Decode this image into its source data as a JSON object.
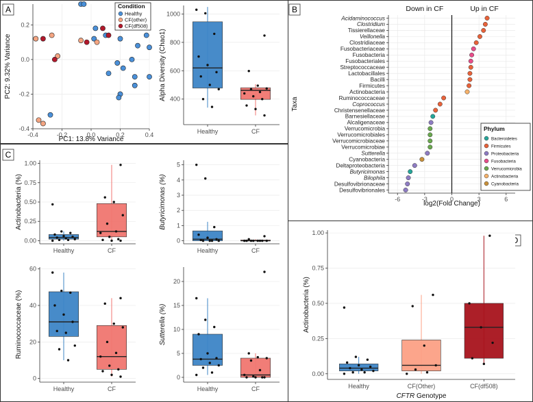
{
  "colors": {
    "healthy": "#3d85c6",
    "cf": "#f07670",
    "pca_healthy": "#4a90d9",
    "pca_cf_other": "#f4a582",
    "pca_cf_df508": "#b2182b",
    "cf_other_box": "#fca085",
    "cf_df508_box": "#a8131c"
  },
  "chart_data": [
    {
      "panel": "A",
      "type": "scatter",
      "xlabel": "PC1: 13.8% Variance",
      "ylabel": "PC2: 9.32% Variance",
      "xlim": [
        -0.4,
        0.4
      ],
      "ylim": [
        -0.4,
        0.32
      ],
      "xticks": [
        -0.4,
        -0.2,
        0.0,
        0.2,
        0.4
      ],
      "xtick_labels": [
        "-0.4",
        "-0.2",
        "0.0",
        "0.2",
        "0.4"
      ],
      "yticks": [
        -0.4,
        -0.2,
        0.0,
        0.2
      ],
      "ytick_labels": [
        "-0.4",
        "-0.2",
        "0.0",
        "0.2"
      ],
      "legend": {
        "title": "Condition",
        "entries": [
          "Healthy",
          "CF(other)",
          "CF(df508)"
        ]
      },
      "series": [
        {
          "name": "Healthy",
          "points": [
            [
              -0.07,
              0.32
            ],
            [
              -0.05,
              0.32
            ],
            [
              0.03,
              0.18
            ],
            [
              0.02,
              0.12
            ],
            [
              0.1,
              0.14
            ],
            [
              0.2,
              0.12
            ],
            [
              0.38,
              0.14
            ],
            [
              0.4,
              0.07
            ],
            [
              0.32,
              0.08
            ],
            [
              0.28,
              0.0
            ],
            [
              0.18,
              -0.02
            ],
            [
              0.22,
              -0.05
            ],
            [
              0.4,
              -0.1
            ],
            [
              0.3,
              -0.1
            ],
            [
              0.12,
              -0.08
            ],
            [
              0.3,
              -0.15
            ],
            [
              0.2,
              -0.2
            ],
            [
              0.19,
              -0.22
            ],
            [
              -0.28,
              -0.32
            ]
          ]
        },
        {
          "name": "CF(other)",
          "points": [
            [
              -0.38,
              0.12
            ],
            [
              -0.27,
              0.14
            ],
            [
              -0.07,
              0.11
            ],
            [
              0.04,
              0.1
            ],
            [
              -0.23,
              0.02
            ],
            [
              -0.36,
              -0.35
            ],
            [
              -0.33,
              -0.37
            ]
          ]
        },
        {
          "name": "CF(df508)",
          "points": [
            [
              -0.33,
              0.12
            ],
            [
              0.08,
              0.18
            ],
            [
              0.12,
              0.14
            ],
            [
              -0.03,
              0.1
            ],
            [
              -0.25,
              0.0
            ]
          ]
        }
      ]
    },
    {
      "panel": "A-box",
      "type": "box",
      "ylabel": "Alpha Diversity (Chao1)",
      "categories": [
        "Healthy",
        "CF"
      ],
      "ylim": [
        220,
        1060
      ],
      "yticks": [
        400,
        600,
        800,
        1000
      ],
      "ytick_labels": [
        "400",
        "600",
        "800",
        "1000"
      ],
      "boxes": [
        {
          "q1": 478,
          "median": 620,
          "q3": 945,
          "lo": 340,
          "hi": 1050,
          "outliers": []
        },
        {
          "q1": 398,
          "median": 462,
          "q3": 480,
          "lo": 285,
          "hi": 505,
          "outliers": [
            848,
            598
          ]
        }
      ],
      "points": [
        [
          1030,
          1005,
          860,
          700,
          640,
          590,
          560,
          500,
          470,
          400,
          345
        ],
        [
          848,
          598,
          495,
          475,
          470,
          450,
          440,
          420,
          400,
          355,
          330,
          285
        ]
      ]
    },
    {
      "panel": "B",
      "type": "dot",
      "header_left": "Down in CF",
      "header_right": "Up in CF",
      "xlabel": "log2(Fold Change)",
      "ylabel": "Taxa",
      "xlim": [
        -7,
        7
      ],
      "xticks": [
        -6,
        -3,
        0,
        3,
        6
      ],
      "xtick_labels": [
        "-6",
        "-3",
        "0",
        "3",
        "6"
      ],
      "legend": {
        "title": "Phylum",
        "entries": [
          "Bacteroidetes",
          "Firmicutes",
          "Proteobacteria",
          "Fusobacteria",
          "Verrucomicrobia",
          "Actinobacteria",
          "Cyanobacteria"
        ]
      },
      "phylum_colors": {
        "Bacteroidetes": "#26a69a",
        "Firmicutes": "#e8623a",
        "Proteobacteria": "#8e7cc3",
        "Fusobacteria": "#e84d8a",
        "Verrucomicrobia": "#6aa84f",
        "Actinobacteria": "#f6b26b",
        "Cyanobacteria": "#c9913b"
      },
      "taxa": [
        {
          "name": "Acidaminococcus",
          "italic": true,
          "value": 3.9,
          "phylum": "Firmicutes"
        },
        {
          "name": "Clostridium",
          "italic": true,
          "value": 3.7,
          "phylum": "Firmicutes"
        },
        {
          "name": "Tissierellaceae",
          "italic": false,
          "value": 3.5,
          "phylum": "Firmicutes"
        },
        {
          "name": "Veillonella",
          "italic": true,
          "value": 3.1,
          "phylum": "Firmicutes"
        },
        {
          "name": "Clostridiaceae",
          "italic": false,
          "value": 2.7,
          "phylum": "Firmicutes"
        },
        {
          "name": "Fusobacteriaceae",
          "italic": false,
          "value": 2.4,
          "phylum": "Fusobacteria"
        },
        {
          "name": "Fusobacteria",
          "italic": false,
          "value": 2.2,
          "phylum": "Fusobacteria"
        },
        {
          "name": "Fusobacteriales",
          "italic": false,
          "value": 2.1,
          "phylum": "Fusobacteria"
        },
        {
          "name": "Streptococcaceae",
          "italic": false,
          "value": 2.1,
          "phylum": "Firmicutes"
        },
        {
          "name": "Lactobacillales",
          "italic": false,
          "value": 2.0,
          "phylum": "Firmicutes"
        },
        {
          "name": "Bacilli",
          "italic": false,
          "value": 2.0,
          "phylum": "Firmicutes"
        },
        {
          "name": "Firmicutes",
          "italic": false,
          "value": 1.9,
          "phylum": "Firmicutes"
        },
        {
          "name": "Actinobacteria",
          "italic": false,
          "value": 1.7,
          "phylum": "Actinobacteria"
        },
        {
          "name": "Ruminococcaceae",
          "italic": false,
          "value": -0.9,
          "phylum": "Firmicutes"
        },
        {
          "name": "Coprococcus",
          "italic": true,
          "value": -1.3,
          "phylum": "Firmicutes"
        },
        {
          "name": "Christensenellaceae",
          "italic": false,
          "value": -1.8,
          "phylum": "Firmicutes"
        },
        {
          "name": "Barnesiellaceae",
          "italic": false,
          "value": -2.1,
          "phylum": "Bacteroidetes"
        },
        {
          "name": "Alcaligenaceae",
          "italic": false,
          "value": -2.3,
          "phylum": "Proteobacteria"
        },
        {
          "name": "Verrucomicrobia",
          "italic": false,
          "value": -2.4,
          "phylum": "Verrucomicrobia"
        },
        {
          "name": "Verrucomicrobiales",
          "italic": false,
          "value": -2.4,
          "phylum": "Verrucomicrobia"
        },
        {
          "name": "Verrucomicrobiaceae",
          "italic": false,
          "value": -2.4,
          "phylum": "Verrucomicrobia"
        },
        {
          "name": "Verrucomicrobiae",
          "italic": false,
          "value": -2.4,
          "phylum": "Verrucomicrobia"
        },
        {
          "name": "Sutterella",
          "italic": true,
          "value": -2.7,
          "phylum": "Proteobacteria"
        },
        {
          "name": "Cyanobacteria",
          "italic": false,
          "value": -3.3,
          "phylum": "Cyanobacteria"
        },
        {
          "name": "Deltaproteobacteria",
          "italic": false,
          "value": -4.1,
          "phylum": "Proteobacteria"
        },
        {
          "name": "Butyricimonas",
          "italic": true,
          "value": -4.6,
          "phylum": "Bacteroidetes"
        },
        {
          "name": "Bilophila",
          "italic": true,
          "value": -4.8,
          "phylum": "Proteobacteria"
        },
        {
          "name": "Desulfovibrionaceae",
          "italic": false,
          "value": -4.9,
          "phylum": "Proteobacteria"
        },
        {
          "name": "Desulfovibrionales",
          "italic": false,
          "value": -5.1,
          "phylum": "Proteobacteria"
        }
      ]
    },
    {
      "panel": "C1",
      "type": "box",
      "ylabel": "Actinobacteria (%)",
      "categories": [
        "Healthy",
        "CF"
      ],
      "ylim": [
        -0.04,
        1.04
      ],
      "yticks": [
        0,
        0.25,
        0.5,
        0.75,
        1.0
      ],
      "ytick_labels": [
        "0.00",
        "0.25",
        "0.50",
        "0.75",
        "1.00"
      ],
      "boxes": [
        {
          "q1": 0.02,
          "median": 0.04,
          "q3": 0.08,
          "lo": 0.0,
          "hi": 0.12,
          "outliers": [
            0.47
          ]
        },
        {
          "q1": 0.05,
          "median": 0.12,
          "q3": 0.48,
          "lo": 0.0,
          "hi": 0.98,
          "outliers": []
        }
      ],
      "points": [
        [
          0.47,
          0.12,
          0.1,
          0.08,
          0.06,
          0.05,
          0.04,
          0.03,
          0.02,
          0.01,
          0.01,
          0.0
        ],
        [
          0.98,
          0.56,
          0.5,
          0.33,
          0.22,
          0.12,
          0.1,
          0.05,
          0.02,
          0.01,
          0.0,
          0.0
        ]
      ]
    },
    {
      "panel": "C2",
      "type": "box",
      "ylabel": "Butyricimonas (%)",
      "ylabel_italic": true,
      "categories": [
        "Healthy",
        "CF"
      ],
      "ylim": [
        -0.2,
        5.3
      ],
      "yticks": [
        0,
        1,
        2,
        3,
        4,
        5
      ],
      "ytick_labels": [
        "0",
        "1",
        "2",
        "3",
        "4",
        "5"
      ],
      "boxes": [
        {
          "q1": 0.0,
          "median": 0.1,
          "q3": 0.65,
          "lo": 0.0,
          "hi": 1.25,
          "outliers": [
            4.1,
            5.0
          ]
        },
        {
          "q1": 0.0,
          "median": 0.0,
          "q3": 0.05,
          "lo": 0.0,
          "hi": 0.1,
          "outliers": [
            0.3
          ]
        }
      ],
      "points": [
        [
          5.0,
          4.1,
          0.9,
          0.4,
          0.2,
          0.1,
          0.05,
          0.0,
          0.0,
          0.0,
          0.0
        ],
        [
          0.3,
          0.1,
          0.0,
          0.0,
          0.0,
          0.0,
          0.0,
          0.0,
          0.0,
          0.0
        ]
      ]
    },
    {
      "panel": "C3",
      "type": "box",
      "ylabel": "Ruminococcaceae (%)",
      "categories": [
        "Healthy",
        "CF"
      ],
      "ylim": [
        -2,
        61
      ],
      "yticks": [
        0,
        20,
        40,
        60
      ],
      "ytick_labels": [
        "0",
        "20",
        "40",
        "60"
      ],
      "boxes": [
        {
          "q1": 23,
          "median": 31,
          "q3": 47.5,
          "lo": 10,
          "hi": 58,
          "outliers": []
        },
        {
          "q1": 5,
          "median": 12,
          "q3": 29,
          "lo": 1,
          "hi": 44,
          "outliers": []
        }
      ],
      "points": [
        [
          58,
          48,
          47,
          40,
          35,
          31,
          26,
          25,
          18,
          16,
          10
        ],
        [
          44,
          41,
          30,
          28,
          20,
          14,
          12,
          7,
          5,
          4,
          2,
          1
        ]
      ]
    },
    {
      "panel": "C4",
      "type": "box",
      "ylabel": "Sutterella (%)",
      "ylabel_italic": true,
      "categories": [
        "Healthy",
        "CF"
      ],
      "ylim": [
        -1,
        23
      ],
      "yticks": [
        0,
        5,
        10,
        15,
        20
      ],
      "ytick_labels": [
        "0",
        "5",
        "10",
        "15",
        "20"
      ],
      "boxes": [
        {
          "q1": 2.5,
          "median": 3.8,
          "q3": 9.0,
          "lo": 0.5,
          "hi": 16.5,
          "outliers": []
        },
        {
          "q1": 0.0,
          "median": 0.5,
          "q3": 4.0,
          "lo": 0.0,
          "hi": 5.0,
          "outliers": [
            22
          ]
        }
      ],
      "points": [
        [
          16.5,
          12,
          10.5,
          9,
          5,
          4,
          3.8,
          3,
          2.5,
          2,
          1,
          0.5
        ],
        [
          22,
          5,
          4.2,
          4,
          3.5,
          1.5,
          0.5,
          0.2,
          0.0,
          0.0,
          0.0,
          0.0
        ]
      ]
    },
    {
      "panel": "D",
      "type": "box",
      "ylabel": "Actinobacteria (%)",
      "xlabel": "CFTR Genotype",
      "xlabel_italic_part": "CFTR",
      "xlabel_rest": " Genotype",
      "categories": [
        "Healthy",
        "CF(Other)",
        "CF(df508)"
      ],
      "ylim": [
        -0.04,
        1.02
      ],
      "yticks": [
        0,
        0.25,
        0.5,
        0.75,
        1.0
      ],
      "ytick_labels": [
        "0.00",
        "0.25",
        "0.50",
        "0.75",
        "1.00"
      ],
      "boxes": [
        {
          "q1": 0.02,
          "median": 0.04,
          "q3": 0.07,
          "lo": 0.0,
          "hi": 0.12,
          "outliers": [
            0.47
          ]
        },
        {
          "q1": 0.02,
          "median": 0.06,
          "q3": 0.24,
          "lo": 0.0,
          "hi": 0.56,
          "outliers": []
        },
        {
          "q1": 0.11,
          "median": 0.33,
          "q3": 0.5,
          "lo": 0.07,
          "hi": 0.98,
          "outliers": []
        }
      ],
      "points": [
        [
          0.47,
          0.12,
          0.1,
          0.08,
          0.06,
          0.05,
          0.04,
          0.03,
          0.02,
          0.01,
          0.01,
          0.0
        ],
        [
          0.56,
          0.48,
          0.2,
          0.06,
          0.03,
          0.01,
          0.0
        ],
        [
          0.98,
          0.5,
          0.33,
          0.22,
          0.11,
          0.07
        ]
      ]
    }
  ],
  "panels": {
    "a_letter": "A",
    "b_letter": "B",
    "c_letter": "C",
    "d_letter": "D"
  }
}
